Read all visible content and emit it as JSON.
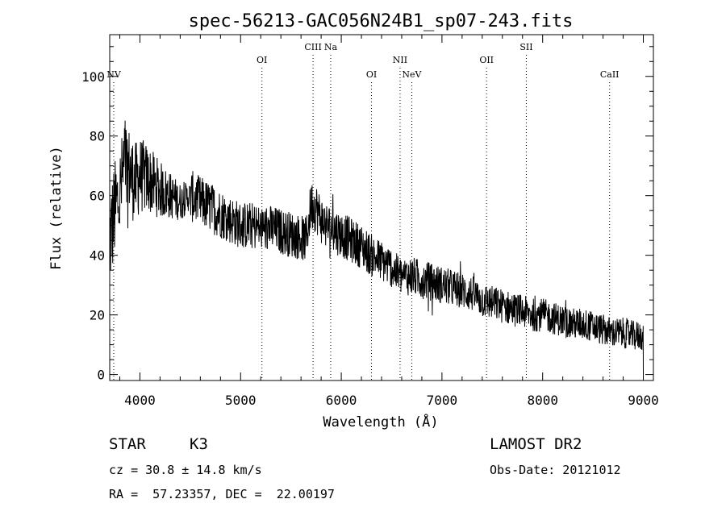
{
  "chart_data": {
    "type": "line",
    "title": "spec-56213-GAC056N24B1_sp07-243.fits",
    "xlabel": "Wavelength (Å)",
    "ylabel": "Flux (relative)",
    "xlim": [
      3700,
      9100
    ],
    "ylim": [
      -2,
      114
    ],
    "xticks": [
      4000,
      5000,
      6000,
      7000,
      8000,
      9000
    ],
    "yticks": [
      0,
      20,
      40,
      60,
      80,
      100
    ],
    "grid": false,
    "series": [
      {
        "name": "spectrum",
        "x": [
          3700,
          3750,
          3800,
          3850,
          3900,
          3950,
          4000,
          4100,
          4200,
          4300,
          4400,
          4500,
          4600,
          4700,
          4800,
          4900,
          5000,
          5100,
          5200,
          5300,
          5400,
          5500,
          5600,
          5650,
          5700,
          5750,
          5800,
          5850,
          5900,
          6000,
          6100,
          6200,
          6300,
          6400,
          6500,
          6550,
          6600,
          6700,
          6800,
          6900,
          7000,
          7100,
          7200,
          7300,
          7400,
          7500,
          7600,
          7700,
          7800,
          7900,
          8000,
          8100,
          8200,
          8300,
          8400,
          8500,
          8600,
          8700,
          8800,
          8900,
          9000
        ],
        "y": [
          45,
          55,
          60,
          72,
          68,
          64,
          67,
          65,
          62,
          60,
          58,
          60,
          58,
          56,
          54,
          52,
          50,
          50,
          49,
          49,
          48,
          47,
          46,
          45,
          57,
          56,
          52,
          50,
          49,
          47,
          45,
          43,
          40,
          38,
          36,
          34,
          33,
          33,
          32,
          31,
          30,
          29,
          28,
          27,
          25,
          24,
          23,
          22,
          21,
          20,
          20,
          19,
          18,
          17,
          17,
          16,
          15,
          14,
          14,
          13,
          13
        ]
      }
    ],
    "annotations": {
      "spectral_lines": [
        {
          "label": "NV",
          "wavelength": 3740,
          "label_row": "low"
        },
        {
          "label": "OI",
          "wavelength": 5212,
          "label_row": "mid"
        },
        {
          "label": "CIII",
          "wavelength": 5720,
          "label_row": "high"
        },
        {
          "label": "Na",
          "wavelength": 5895,
          "label_row": "high"
        },
        {
          "label": "OI",
          "wavelength": 6300,
          "label_row": "low"
        },
        {
          "label": "NII",
          "wavelength": 6584,
          "label_row": "mid"
        },
        {
          "label": "NeV",
          "wavelength": 6700,
          "label_row": "low"
        },
        {
          "label": "OII",
          "wavelength": 7443,
          "label_row": "mid"
        },
        {
          "label": "SII",
          "wavelength": 7838,
          "label_row": "high"
        },
        {
          "label": "CaII",
          "wavelength": 8665,
          "label_row": "low"
        }
      ]
    }
  },
  "info": {
    "object_class": "STAR",
    "subclass": "K3",
    "survey": "LAMOST DR2",
    "redshift_text": "cz = 30.8 ± 14.8 km/s",
    "obs_date_text": "Obs-Date: 20121012",
    "radec_text": "RA =  57.23357, DEC =  22.00197"
  }
}
